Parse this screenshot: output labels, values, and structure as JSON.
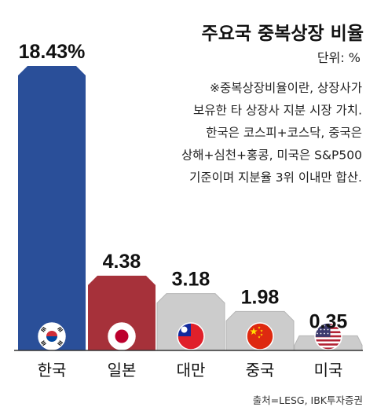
{
  "chart_data": {
    "type": "bar",
    "title": "주요국 중복상장 비율",
    "unit_label": "단위: %",
    "note_lines": [
      "※중복상장비율이란, 상장사가",
      "보유한 타 상장사 지분 시장 가치.",
      "한국은 코스피+코스닥, 중국은",
      "상해+심천+홍콩, 미국은 S&P500",
      "기준이며 지분율 3위 이내만 합산."
    ],
    "categories": [
      "한국",
      "일본",
      "대만",
      "중국",
      "미국"
    ],
    "values": [
      18.43,
      4.38,
      3.18,
      1.98,
      0.35
    ],
    "value_labels": [
      "18.43%",
      "4.38",
      "3.18",
      "1.98",
      "0.35"
    ],
    "flag_icons": [
      "korea-flag-icon",
      "japan-flag-icon",
      "taiwan-flag-icon",
      "china-flag-icon",
      "usa-flag-icon"
    ],
    "bar_colors": [
      "#2a4f99",
      "#a6313a",
      "#cccccc",
      "#cccccc",
      "#cccccc"
    ],
    "ylim": [
      0,
      18.43
    ],
    "grid": false,
    "source": "출처=LESG, IBK투자증권"
  }
}
